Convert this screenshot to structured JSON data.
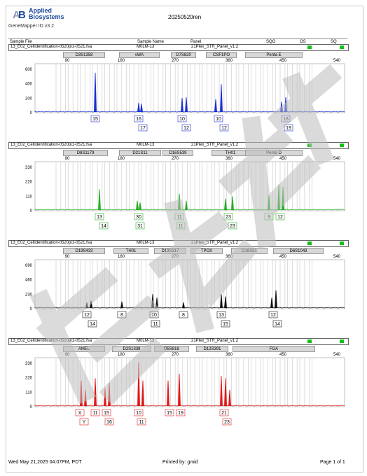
{
  "header": {
    "brand_line1": "Applied",
    "brand_line2": "Biosystems",
    "app_name": "GeneMapper ID v3.2",
    "doc_title": "20250520ren"
  },
  "columns": {
    "sample_file": "Sample File",
    "sample_name": "Sample Name",
    "panel": "Panel",
    "sqo": "SQO",
    "os": "OS",
    "sq": "SQ"
  },
  "colors": {
    "blue": "#1a2fd6",
    "green": "#22b022",
    "black": "#111111",
    "red": "#e01818",
    "quality_ok": "#18c018"
  },
  "scale": {
    "x_ticks": [
      "90",
      "180",
      "270",
      "360",
      "450",
      "540"
    ]
  },
  "panels": [
    {
      "file": "13_E02_Cellidentification-0520pi1-0521.fsa",
      "sample": "M0LM-13",
      "panel": "21Plex_STR_Panel_v1.2",
      "dye": "blue",
      "y_ticks": [
        "600",
        "400",
        "200",
        "0"
      ],
      "markers": [
        "D3S1358",
        "vWA",
        "D7S820",
        "CSF1PO",
        "Penta E"
      ],
      "alleles_row1": [
        "15",
        "16",
        "10",
        "10",
        "18"
      ],
      "alleles_row2": [
        "17",
        "12",
        "12",
        "19"
      ]
    },
    {
      "file": "13_E02_Cellidentification-0520pi1-0521.fsa",
      "sample": "M0LM-13",
      "panel": "21Plex_STR_Panel_v1.2",
      "dye": "green",
      "y_ticks": [
        "330",
        "220",
        "110",
        "0"
      ],
      "markers": [
        "D8S1179",
        "D21S11",
        "D16S539",
        "TH01",
        "Penta D"
      ],
      "alleles_row1": [
        "13",
        "30",
        "11",
        "23",
        "9",
        "12"
      ],
      "alleles_row2": [
        "14",
        "31",
        "11",
        "23"
      ]
    },
    {
      "file": "13_E02_Cellidentification-0520pi1-0521.fsa",
      "sample": "M0LM-13",
      "panel": "21Plex_STR_Panel_v1.2",
      "dye": "black",
      "y_ticks": [
        "690",
        "460",
        "230",
        "0"
      ],
      "markers": [
        "D19S433",
        "TH01",
        "D13S317",
        "TPOX",
        "D18S51",
        "D6S1043"
      ],
      "alleles_row1": [
        "12",
        "8",
        "10",
        "8",
        "13",
        "12"
      ],
      "alleles_row2": [
        "14",
        "11",
        "15",
        "14"
      ]
    },
    {
      "file": "13_E02_Cellidentification-0520pi1-0521.fsa",
      "sample": "M0LM-13",
      "panel": "21Plex_STR_Panel_v1.2",
      "dye": "red",
      "y_ticks": [
        "330",
        "220",
        "110",
        "0"
      ],
      "markers": [
        "AMEL",
        "D2S1338",
        "D5S818",
        "D12S391",
        "FGA"
      ],
      "alleles_row1": [
        "X",
        "11",
        "15",
        "10",
        "15",
        "19",
        "21"
      ],
      "alleles_row2": [
        "Y",
        "16",
        "11",
        "23"
      ]
    }
  ],
  "footer": {
    "date": "Wed May 21,2025 04:07PM, PDT",
    "printed_by": "Printed by: gmid",
    "page": "Page 1 of 1"
  }
}
